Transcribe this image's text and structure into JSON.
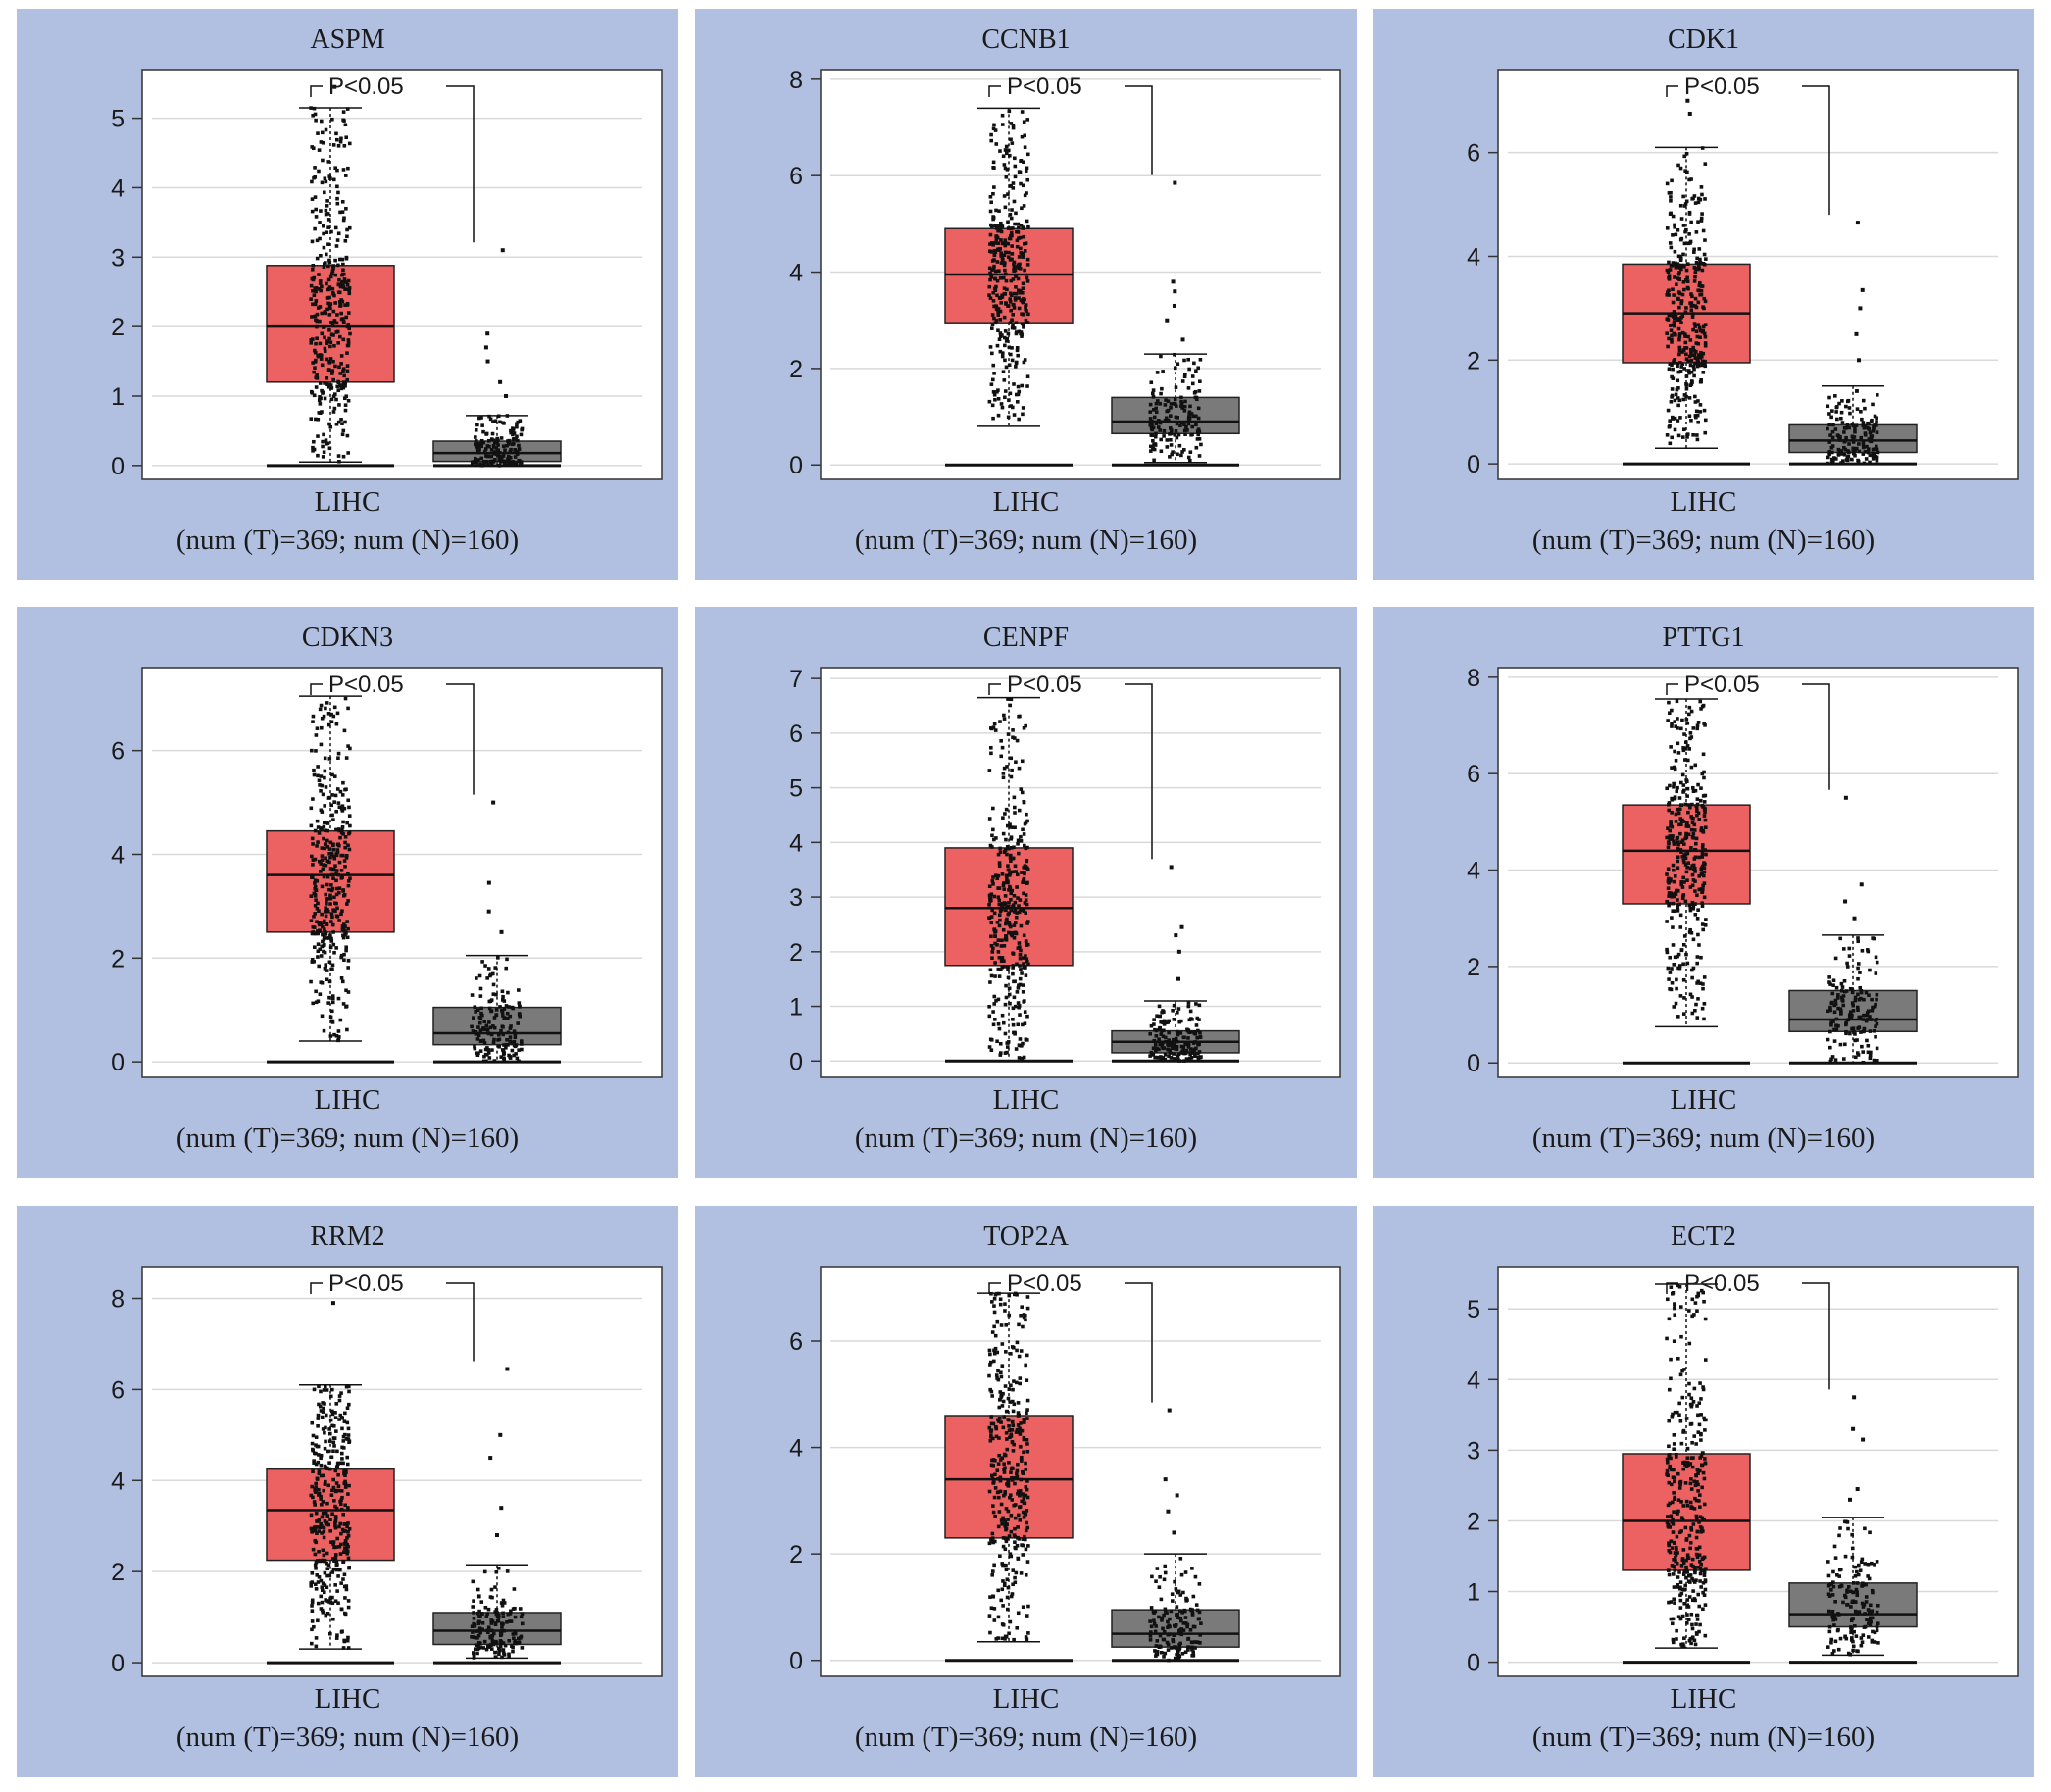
{
  "colors": {
    "panel_bg": "#b1bfe0",
    "tumor_box": "#ec6262",
    "normal_box": "#7a7a7a",
    "points": "#111111",
    "grid": "#d9d9d9"
  },
  "chart_data": [
    {
      "type": "box",
      "title": "ASPM",
      "xlabel": "LIHC",
      "subtitle": "(num (T)=369; num (N)=160)",
      "pvalue": "P<0.05",
      "ylim": [
        -0.2,
        5.7
      ],
      "yticks": [
        0,
        1,
        2,
        3,
        4,
        5
      ],
      "boxes": [
        {
          "group": "T",
          "min": 0.05,
          "q1": 1.2,
          "median": 2.0,
          "q3": 2.88,
          "max": 5.15,
          "outliers": [
            5.45
          ]
        },
        {
          "group": "N",
          "min": 0.0,
          "q1": 0.06,
          "median": 0.18,
          "q3": 0.35,
          "max": 0.72,
          "outliers": [
            1.0,
            1.2,
            1.5,
            1.7,
            1.9,
            3.1
          ]
        }
      ]
    },
    {
      "type": "box",
      "title": "CCNB1",
      "xlabel": "LIHC",
      "subtitle": "(num (T)=369; num (N)=160)",
      "pvalue": "P<0.05",
      "ylim": [
        -0.3,
        8.2
      ],
      "yticks": [
        0,
        2,
        4,
        6,
        8
      ],
      "boxes": [
        {
          "group": "T",
          "min": 0.8,
          "q1": 2.95,
          "median": 3.95,
          "q3": 4.9,
          "max": 7.4,
          "outliers": []
        },
        {
          "group": "N",
          "min": 0.05,
          "q1": 0.65,
          "median": 0.9,
          "q3": 1.4,
          "max": 2.3,
          "outliers": [
            2.6,
            3.0,
            3.3,
            3.6,
            3.8,
            5.85
          ]
        }
      ]
    },
    {
      "type": "box",
      "title": "CDK1",
      "xlabel": "LIHC",
      "subtitle": "(num (T)=369; num (N)=160)",
      "pvalue": "P<0.05",
      "ylim": [
        -0.3,
        7.6
      ],
      "yticks": [
        0,
        2,
        4,
        6
      ],
      "boxes": [
        {
          "group": "T",
          "min": 0.3,
          "q1": 1.95,
          "median": 2.9,
          "q3": 3.85,
          "max": 6.1,
          "outliers": [
            6.75,
            7.0
          ]
        },
        {
          "group": "N",
          "min": 0.0,
          "q1": 0.22,
          "median": 0.45,
          "q3": 0.75,
          "max": 1.5,
          "outliers": [
            2.0,
            2.5,
            3.0,
            3.35,
            4.65
          ]
        }
      ]
    },
    {
      "type": "box",
      "title": "CDKN3",
      "xlabel": "LIHC",
      "subtitle": "(num (T)=369; num (N)=160)",
      "pvalue": "P<0.05",
      "ylim": [
        -0.3,
        7.6
      ],
      "yticks": [
        0,
        2,
        4,
        6
      ],
      "boxes": [
        {
          "group": "T",
          "min": 0.4,
          "q1": 2.5,
          "median": 3.6,
          "q3": 4.45,
          "max": 7.05,
          "outliers": []
        },
        {
          "group": "N",
          "min": 0.0,
          "q1": 0.33,
          "median": 0.55,
          "q3": 1.05,
          "max": 2.05,
          "outliers": [
            2.5,
            2.9,
            3.45,
            5.0
          ]
        }
      ]
    },
    {
      "type": "box",
      "title": "CENPF",
      "xlabel": "LIHC",
      "subtitle": "(num (T)=369; num (N)=160)",
      "pvalue": "P<0.05",
      "ylim": [
        -0.3,
        7.2
      ],
      "yticks": [
        0,
        1,
        2,
        3,
        4,
        5,
        6,
        7
      ],
      "boxes": [
        {
          "group": "T",
          "min": 0.0,
          "q1": 1.75,
          "median": 2.8,
          "q3": 3.9,
          "max": 6.65,
          "outliers": []
        },
        {
          "group": "N",
          "min": 0.0,
          "q1": 0.15,
          "median": 0.35,
          "q3": 0.55,
          "max": 1.1,
          "outliers": [
            1.5,
            2.0,
            2.3,
            2.45,
            3.55
          ]
        }
      ]
    },
    {
      "type": "box",
      "title": "PTTG1",
      "xlabel": "LIHC",
      "subtitle": "(num (T)=369; num (N)=160)",
      "pvalue": "P<0.05",
      "ylim": [
        -0.3,
        8.2
      ],
      "yticks": [
        0,
        2,
        4,
        6,
        8
      ],
      "boxes": [
        {
          "group": "T",
          "min": 0.75,
          "q1": 3.3,
          "median": 4.4,
          "q3": 5.35,
          "max": 7.55,
          "outliers": []
        },
        {
          "group": "N",
          "min": 0.0,
          "q1": 0.65,
          "median": 0.9,
          "q3": 1.5,
          "max": 2.65,
          "outliers": [
            3.0,
            3.35,
            3.7,
            5.5
          ]
        }
      ]
    },
    {
      "type": "box",
      "title": "RRM2",
      "xlabel": "LIHC",
      "subtitle": "(num (T)=369; num (N)=160)",
      "pvalue": "P<0.05",
      "ylim": [
        -0.3,
        8.7
      ],
      "yticks": [
        0,
        2,
        4,
        6,
        8
      ],
      "boxes": [
        {
          "group": "T",
          "min": 0.3,
          "q1": 2.25,
          "median": 3.35,
          "q3": 4.25,
          "max": 6.1,
          "outliers": [
            7.9
          ]
        },
        {
          "group": "N",
          "min": 0.1,
          "q1": 0.4,
          "median": 0.7,
          "q3": 1.1,
          "max": 2.15,
          "outliers": [
            2.8,
            3.4,
            4.5,
            5.0,
            6.45
          ]
        }
      ]
    },
    {
      "type": "box",
      "title": "TOP2A",
      "xlabel": "LIHC",
      "subtitle": "(num (T)=369; num (N)=160)",
      "pvalue": "P<0.05",
      "ylim": [
        -0.3,
        7.4
      ],
      "yticks": [
        0,
        2,
        4,
        6
      ],
      "boxes": [
        {
          "group": "T",
          "min": 0.35,
          "q1": 2.3,
          "median": 3.4,
          "q3": 4.6,
          "max": 6.9,
          "outliers": []
        },
        {
          "group": "N",
          "min": 0.0,
          "q1": 0.25,
          "median": 0.5,
          "q3": 0.95,
          "max": 2.0,
          "outliers": [
            2.4,
            2.8,
            3.1,
            3.4,
            4.7
          ]
        }
      ]
    },
    {
      "type": "box",
      "title": "ECT2",
      "xlabel": "LIHC",
      "subtitle": "(num (T)=369; num (N)=160)",
      "pvalue": "P<0.05",
      "ylim": [
        -0.2,
        5.6
      ],
      "yticks": [
        0,
        1,
        2,
        3,
        4,
        5
      ],
      "boxes": [
        {
          "group": "T",
          "min": 0.2,
          "q1": 1.3,
          "median": 2.0,
          "q3": 2.95,
          "max": 5.35,
          "outliers": []
        },
        {
          "group": "N",
          "min": 0.1,
          "q1": 0.5,
          "median": 0.68,
          "q3": 1.12,
          "max": 2.05,
          "outliers": [
            2.3,
            2.45,
            3.15,
            3.3,
            3.75
          ]
        }
      ]
    }
  ]
}
